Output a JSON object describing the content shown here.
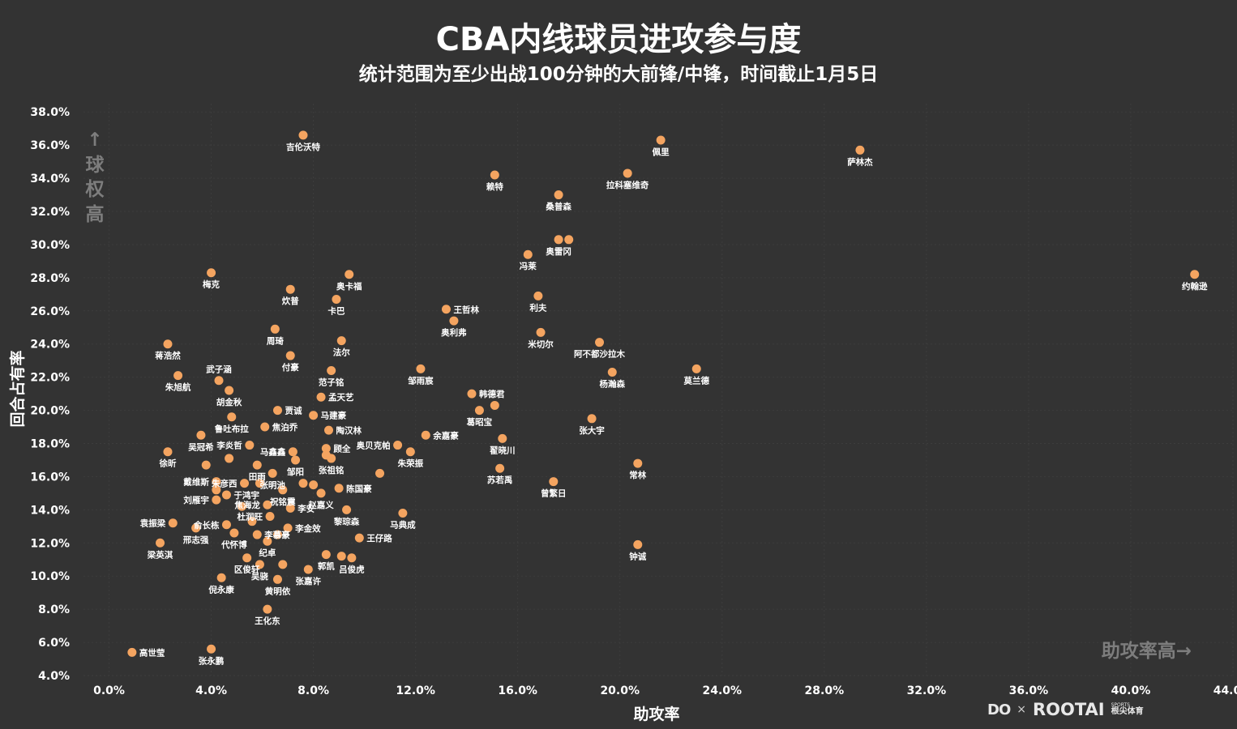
{
  "page": {
    "title": "CBA内线球员进攻参与度",
    "subtitle": "统计范围为至少出战100分钟的大前锋/中锋，时间截止1月5日"
  },
  "colors": {
    "background": "#333333",
    "point": "#F4A460",
    "text": "#ffffff",
    "annotation": "#7d7d7d"
  },
  "annotations": {
    "y_high_arrow": "↑",
    "y_high_chars": [
      "球",
      "权",
      "高"
    ],
    "x_high": "助攻率高→"
  },
  "logo": {
    "mark": "DO",
    "times": "×",
    "brand": "ROOTAI",
    "sub_en": "SPORTS",
    "sub_cn": "根尖体育"
  },
  "chart_data": {
    "type": "scatter",
    "title": "CBA内线球员进攻参与度",
    "subtitle": "统计范围为至少出战100分钟的大前锋/中锋，时间截止1月5日",
    "xlabel": "助攻率",
    "ylabel": "回合占有率",
    "xlim": [
      -1.0,
      44.0
    ],
    "ylim": [
      4.0,
      38.5
    ],
    "xticks": [
      "0.0%",
      "4.0%",
      "8.0%",
      "12.0%",
      "16.0%",
      "20.0%",
      "24.0%",
      "28.0%",
      "32.0%",
      "36.0%",
      "40.0%",
      "44.0%"
    ],
    "yticks": [
      "4.0%",
      "6.0%",
      "8.0%",
      "10.0%",
      "12.0%",
      "14.0%",
      "16.0%",
      "18.0%",
      "20.0%",
      "22.0%",
      "24.0%",
      "26.0%",
      "28.0%",
      "30.0%",
      "32.0%",
      "34.0%",
      "36.0%",
      "38.0%"
    ],
    "grid": true,
    "points": [
      {
        "x": 42.5,
        "y": 28.2,
        "label": "约翰逊",
        "lpos": "below"
      },
      {
        "x": 29.4,
        "y": 35.7,
        "label": "萨林杰",
        "lpos": "below"
      },
      {
        "x": 21.6,
        "y": 36.3,
        "label": "佩里",
        "lpos": "below"
      },
      {
        "x": 20.3,
        "y": 34.3,
        "label": "拉科塞维奇",
        "lpos": "below"
      },
      {
        "x": 15.1,
        "y": 34.2,
        "label": "赖特",
        "lpos": "below"
      },
      {
        "x": 17.6,
        "y": 33.0,
        "label": "桑普森",
        "lpos": "below"
      },
      {
        "x": 7.6,
        "y": 36.6,
        "label": "吉伦沃特",
        "lpos": "below"
      },
      {
        "x": 17.6,
        "y": 30.3,
        "label": "奥雷冈",
        "lpos": "below"
      },
      {
        "x": 18.0,
        "y": 30.3,
        "label": ""
      },
      {
        "x": 16.4,
        "y": 29.4,
        "label": "冯莱",
        "lpos": "below"
      },
      {
        "x": 4.0,
        "y": 28.3,
        "label": "梅克",
        "lpos": "below"
      },
      {
        "x": 9.4,
        "y": 28.2,
        "label": "奥卡福",
        "lpos": "below"
      },
      {
        "x": 7.1,
        "y": 27.3,
        "label": "炊普",
        "lpos": "below"
      },
      {
        "x": 8.9,
        "y": 26.7,
        "label": "卡巴",
        "lpos": "below"
      },
      {
        "x": 16.8,
        "y": 26.9,
        "label": "利夫",
        "lpos": "below"
      },
      {
        "x": 13.2,
        "y": 26.1,
        "label": "王哲林",
        "lpos": "right"
      },
      {
        "x": 13.5,
        "y": 25.4,
        "label": "奥利弗",
        "lpos": "below"
      },
      {
        "x": 6.5,
        "y": 24.9,
        "label": "周琦",
        "lpos": "below"
      },
      {
        "x": 16.9,
        "y": 24.7,
        "label": "米切尔",
        "lpos": "below"
      },
      {
        "x": 2.3,
        "y": 24.0,
        "label": "蒋浩然",
        "lpos": "below"
      },
      {
        "x": 9.1,
        "y": 24.2,
        "label": "法尔",
        "lpos": "below"
      },
      {
        "x": 19.2,
        "y": 24.1,
        "label": "阿不都沙拉木",
        "lpos": "below"
      },
      {
        "x": 7.1,
        "y": 23.3,
        "label": "付豪",
        "lpos": "below"
      },
      {
        "x": 12.2,
        "y": 22.5,
        "label": "邹雨宸",
        "lpos": "below"
      },
      {
        "x": 23.0,
        "y": 22.5,
        "label": "莫兰德",
        "lpos": "below"
      },
      {
        "x": 8.7,
        "y": 22.4,
        "label": "范子铭",
        "lpos": "below"
      },
      {
        "x": 19.7,
        "y": 22.3,
        "label": "杨瀚森",
        "lpos": "below"
      },
      {
        "x": 2.7,
        "y": 22.1,
        "label": "朱旭航",
        "lpos": "below"
      },
      {
        "x": 4.3,
        "y": 21.8,
        "label": "武子涵",
        "lpos": "above"
      },
      {
        "x": 4.7,
        "y": 21.2,
        "label": "胡金秋",
        "lpos": "below"
      },
      {
        "x": 14.2,
        "y": 21.0,
        "label": "韩德君",
        "lpos": "right"
      },
      {
        "x": 8.3,
        "y": 20.8,
        "label": "孟天艺",
        "lpos": "right"
      },
      {
        "x": 15.1,
        "y": 20.3,
        "label": ""
      },
      {
        "x": 14.5,
        "y": 20.0,
        "label": "葛昭宝",
        "lpos": "below"
      },
      {
        "x": 6.6,
        "y": 20.0,
        "label": "贾诚",
        "lpos": "right"
      },
      {
        "x": 8.0,
        "y": 19.7,
        "label": "马建豪",
        "lpos": "right"
      },
      {
        "x": 4.8,
        "y": 19.6,
        "label": "鲁吐布拉",
        "lpos": "below"
      },
      {
        "x": 18.9,
        "y": 19.5,
        "label": "张大宇",
        "lpos": "below"
      },
      {
        "x": 6.1,
        "y": 19.0,
        "label": "焦泊乔",
        "lpos": "right"
      },
      {
        "x": 8.6,
        "y": 18.8,
        "label": "陶汉林",
        "lpos": "right"
      },
      {
        "x": 3.6,
        "y": 18.5,
        "label": "吴冠希",
        "lpos": "below"
      },
      {
        "x": 12.4,
        "y": 18.5,
        "label": "余嘉豪",
        "lpos": "right"
      },
      {
        "x": 15.4,
        "y": 18.3,
        "label": "翟晓川",
        "lpos": "below"
      },
      {
        "x": 5.5,
        "y": 17.9,
        "label": "李炎哲",
        "lpos": "left"
      },
      {
        "x": 11.3,
        "y": 17.9,
        "label": "奥贝克帕",
        "lpos": "left"
      },
      {
        "x": 8.5,
        "y": 17.7,
        "label": "顾全",
        "lpos": "right"
      },
      {
        "x": 2.3,
        "y": 17.5,
        "label": "徐昕",
        "lpos": "below"
      },
      {
        "x": 7.2,
        "y": 17.5,
        "label": "马鑫鑫",
        "lpos": "left"
      },
      {
        "x": 11.8,
        "y": 17.5,
        "label": "朱荣振",
        "lpos": "below"
      },
      {
        "x": 8.5,
        "y": 17.3,
        "label": ""
      },
      {
        "x": 4.7,
        "y": 17.1,
        "label": ""
      },
      {
        "x": 7.3,
        "y": 17.0,
        "label": "邹阳",
        "lpos": "below"
      },
      {
        "x": 8.7,
        "y": 17.1,
        "label": "张祖铭",
        "lpos": "below"
      },
      {
        "x": 20.7,
        "y": 16.8,
        "label": "常林",
        "lpos": "below"
      },
      {
        "x": 3.8,
        "y": 16.7,
        "label": "",
        "lpos": "below"
      },
      {
        "x": 5.8,
        "y": 16.7,
        "label": "田雨",
        "lpos": "below"
      },
      {
        "x": 15.3,
        "y": 16.5,
        "label": "苏若禹",
        "lpos": "below"
      },
      {
        "x": 10.6,
        "y": 16.2,
        "label": ""
      },
      {
        "x": 6.4,
        "y": 16.2,
        "label": "张明池",
        "lpos": "below"
      },
      {
        "x": 17.4,
        "y": 15.7,
        "label": "曾繁日",
        "lpos": "below"
      },
      {
        "x": 4.2,
        "y": 15.7,
        "label": "戴维斯",
        "lpos": "left"
      },
      {
        "x": 5.3,
        "y": 15.6,
        "label": "朱彦西",
        "lpos": "left"
      },
      {
        "x": 5.9,
        "y": 15.6,
        "label": ""
      },
      {
        "x": 7.6,
        "y": 15.6,
        "label": ""
      },
      {
        "x": 8.0,
        "y": 15.5,
        "label": ""
      },
      {
        "x": 9.0,
        "y": 15.3,
        "label": "陈国豪",
        "lpos": "right"
      },
      {
        "x": 6.8,
        "y": 15.2,
        "label": "祝铭震",
        "lpos": "below"
      },
      {
        "x": 4.2,
        "y": 15.2,
        "label": ""
      },
      {
        "x": 8.3,
        "y": 15.0,
        "label": "赵嘉义",
        "lpos": "below"
      },
      {
        "x": 4.6,
        "y": 14.9,
        "label": "于鸿宇",
        "lpos": "right"
      },
      {
        "x": 4.2,
        "y": 14.6,
        "label": "刘雁宇",
        "lpos": "left"
      },
      {
        "x": 6.2,
        "y": 14.3,
        "label": "焦海龙",
        "lpos": "left"
      },
      {
        "x": 5.2,
        "y": 14.2,
        "label": ""
      },
      {
        "x": 7.1,
        "y": 14.1,
        "label": "李安",
        "lpos": "right"
      },
      {
        "x": 6.3,
        "y": 13.6,
        "label": "杜润旺",
        "lpos": "left"
      },
      {
        "x": 9.3,
        "y": 14.0,
        "label": "黎琮森",
        "lpos": "below"
      },
      {
        "x": 11.5,
        "y": 13.8,
        "label": "马典成",
        "lpos": "below"
      },
      {
        "x": 2.5,
        "y": 13.2,
        "label": "袁振梁",
        "lpos": "left"
      },
      {
        "x": 5.6,
        "y": 13.3,
        "label": ""
      },
      {
        "x": 4.6,
        "y": 13.1,
        "label": "俞长栋",
        "lpos": "left"
      },
      {
        "x": 3.4,
        "y": 12.9,
        "label": "邢志强",
        "lpos": "below"
      },
      {
        "x": 7.0,
        "y": 12.9,
        "label": "李金效",
        "lpos": "right"
      },
      {
        "x": 4.9,
        "y": 12.6,
        "label": "代怀博",
        "lpos": "below"
      },
      {
        "x": 5.8,
        "y": 12.5,
        "label": "李慕豪",
        "lpos": "right"
      },
      {
        "x": 6.6,
        "y": 12.5,
        "label": ""
      },
      {
        "x": 9.8,
        "y": 12.3,
        "label": "王仔路",
        "lpos": "right"
      },
      {
        "x": 6.2,
        "y": 12.1,
        "label": "纪卓",
        "lpos": "below"
      },
      {
        "x": 2.0,
        "y": 12.0,
        "label": "梁英淇",
        "lpos": "below"
      },
      {
        "x": 20.7,
        "y": 11.9,
        "label": "钟诚",
        "lpos": "below"
      },
      {
        "x": 8.5,
        "y": 11.3,
        "label": "郭凯",
        "lpos": "below"
      },
      {
        "x": 9.1,
        "y": 11.2,
        "label": ""
      },
      {
        "x": 9.5,
        "y": 11.1,
        "label": "吕俊虎",
        "lpos": "below"
      },
      {
        "x": 5.4,
        "y": 11.1,
        "label": "区俊轩",
        "lpos": "below"
      },
      {
        "x": 5.9,
        "y": 10.7,
        "label": "吴骁",
        "lpos": "below"
      },
      {
        "x": 6.8,
        "y": 10.7,
        "label": ""
      },
      {
        "x": 7.8,
        "y": 10.4,
        "label": "张嘉许",
        "lpos": "below"
      },
      {
        "x": 4.4,
        "y": 9.9,
        "label": "倪永康",
        "lpos": "below"
      },
      {
        "x": 6.6,
        "y": 9.8,
        "label": "黄明依",
        "lpos": "below"
      },
      {
        "x": 6.2,
        "y": 8.0,
        "label": "王化东",
        "lpos": "below"
      },
      {
        "x": 0.9,
        "y": 5.4,
        "label": "高世莹",
        "lpos": "right"
      },
      {
        "x": 4.0,
        "y": 5.6,
        "label": "张永鹏",
        "lpos": "below"
      }
    ]
  }
}
